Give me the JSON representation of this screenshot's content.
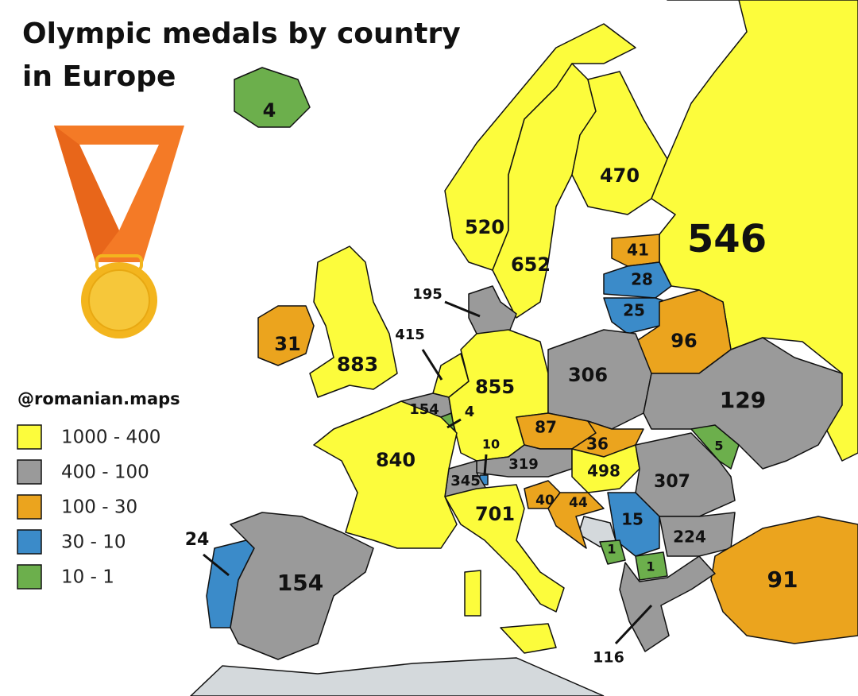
{
  "title": [
    "Olympic medals by country",
    "in Europe"
  ],
  "credit": "@romanian.maps",
  "legend": [
    {
      "label": "1000 - 400",
      "color": "#fcfc3c"
    },
    {
      "label": "400 - 100",
      "color": "#9a9a9a"
    },
    {
      "label": "100 - 30",
      "color": "#eba41e"
    },
    {
      "label": "30 - 10",
      "color": "#3b8bc9"
    },
    {
      "label": "10 - 1",
      "color": "#6caf4c"
    }
  ],
  "countries": [
    {
      "value": 4,
      "color": "#6caf4c"
    },
    {
      "value": 31,
      "color": "#eba41e"
    },
    {
      "value": 883,
      "color": "#fcfc3c"
    },
    {
      "value": 520,
      "color": "#fcfc3c"
    },
    {
      "value": 652,
      "color": "#fcfc3c"
    },
    {
      "value": 470,
      "color": "#fcfc3c"
    },
    {
      "value": 546,
      "color": "#fcfc3c"
    },
    {
      "value": 41,
      "color": "#eba41e"
    },
    {
      "value": 28,
      "color": "#3b8bc9"
    },
    {
      "value": 25,
      "color": "#3b8bc9"
    },
    {
      "value": 96,
      "color": "#eba41e"
    },
    {
      "value": 195,
      "color": "#9a9a9a"
    },
    {
      "value": 415,
      "color": "#fcfc3c"
    },
    {
      "value": 154,
      "color": "#9a9a9a"
    },
    {
      "value": 4,
      "color": "#6caf4c"
    },
    {
      "value": 855,
      "color": "#fcfc3c"
    },
    {
      "value": 306,
      "color": "#9a9a9a"
    },
    {
      "value": 129,
      "color": "#9a9a9a"
    },
    {
      "value": 87,
      "color": "#eba41e"
    },
    {
      "value": 36,
      "color": "#eba41e"
    },
    {
      "value": 5,
      "color": "#6caf4c"
    },
    {
      "value": 10,
      "color": "#3b8bc9"
    },
    {
      "value": 319,
      "color": "#9a9a9a"
    },
    {
      "value": 498,
      "color": "#fcfc3c"
    },
    {
      "value": 345,
      "color": "#9a9a9a"
    },
    {
      "value": 307,
      "color": "#9a9a9a"
    },
    {
      "value": 840,
      "color": "#fcfc3c"
    },
    {
      "value": 701,
      "color": "#fcfc3c"
    },
    {
      "value": 40,
      "color": "#eba41e"
    },
    {
      "value": 44,
      "color": "#eba41e"
    },
    {
      "value": 15,
      "color": "#3b8bc9"
    },
    {
      "value": 224,
      "color": "#9a9a9a"
    },
    {
      "value": 1,
      "color": "#6caf4c"
    },
    {
      "value": 1,
      "color": "#6caf4c"
    },
    {
      "value": 91,
      "color": "#eba41e"
    },
    {
      "value": 24,
      "color": "#3b8bc9"
    },
    {
      "value": 154,
      "color": "#9a9a9a"
    },
    {
      "value": 116,
      "color": "#9a9a9a"
    }
  ]
}
